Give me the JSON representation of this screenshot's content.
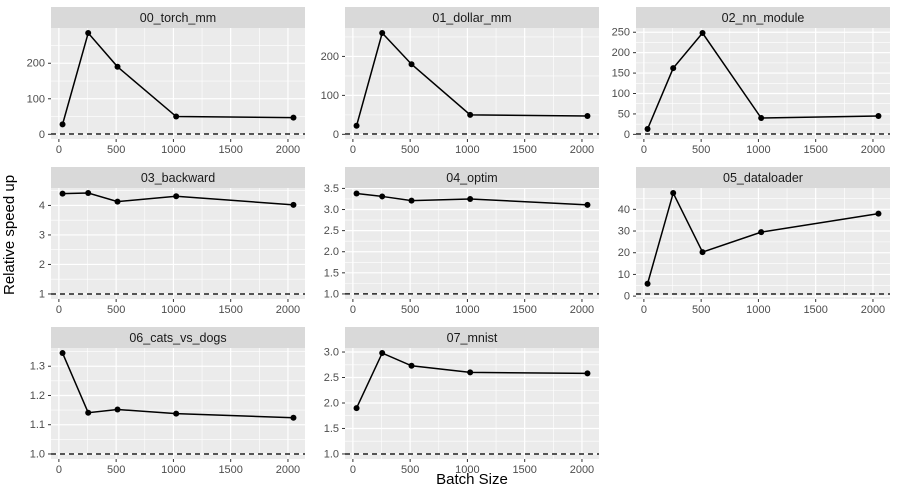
{
  "figure": {
    "colors": {
      "panel_bg": "#EBEBEB",
      "strip_bg": "#D9D9D9",
      "grid": "#FFFFFF",
      "line": "#000000",
      "point": "#000000",
      "baseline": "#222222",
      "tick_text": "#4D4D4D",
      "strip_text": "#1A1A1A",
      "tick_mark": "#333333"
    }
  },
  "chart_data": {
    "type": "line",
    "xlabel": "Batch Size",
    "ylabel": "Relative speed up",
    "legend": "none",
    "grid": true,
    "baseline": 1,
    "xlim": [
      -68.8,
      2148.8
    ],
    "xticks": [
      0,
      500,
      1000,
      1500,
      2000
    ],
    "xtick_labels": [
      "0",
      "500",
      "1000",
      "1500",
      "2000"
    ],
    "x": [
      32,
      256,
      512,
      1024,
      2048
    ],
    "facets": [
      {
        "title": "00_torch_mm",
        "values": [
          28,
          285,
          190,
          50,
          47
        ],
        "ylim": [
          -13.2,
          299.2
        ],
        "yticks": [
          0,
          100,
          200
        ],
        "ytick_labels": [
          "0",
          "100",
          "200"
        ]
      },
      {
        "title": "01_dollar_mm",
        "values": [
          22,
          260,
          180,
          50,
          47
        ],
        "ylim": [
          -11.95,
          272.95
        ],
        "yticks": [
          0,
          100,
          200
        ],
        "ytick_labels": [
          "0",
          "100",
          "200"
        ]
      },
      {
        "title": "02_nn_module",
        "values": [
          13,
          162,
          248,
          40,
          45
        ],
        "ylim": [
          -11.35,
          260.35
        ],
        "yticks": [
          0,
          50,
          100,
          150,
          200,
          250
        ],
        "ytick_labels": [
          "0",
          "50",
          "100",
          "150",
          "200",
          "250"
        ]
      },
      {
        "title": "03_backward",
        "values": [
          4.4,
          4.42,
          4.13,
          4.31,
          4.02
        ],
        "ylim": [
          0.829,
          4.591
        ],
        "yticks": [
          1,
          2,
          3,
          4
        ],
        "ytick_labels": [
          "1",
          "2",
          "3",
          "4"
        ]
      },
      {
        "title": "04_optim",
        "values": [
          3.38,
          3.31,
          3.21,
          3.25,
          3.11
        ],
        "ylim": [
          0.88,
          3.51
        ],
        "yticks": [
          1.0,
          1.5,
          2.0,
          2.5,
          3.0,
          3.5
        ],
        "ytick_labels": [
          "1.0",
          "1.5",
          "2.0",
          "2.5",
          "3.0",
          "3.5"
        ]
      },
      {
        "title": "05_dataloader",
        "values": [
          5.7,
          47.5,
          20.3,
          29.5,
          38
        ],
        "ylim": [
          -1.325,
          49.825
        ],
        "yticks": [
          0,
          10,
          20,
          30,
          40
        ],
        "ytick_labels": [
          "0",
          "10",
          "20",
          "30",
          "40"
        ]
      },
      {
        "title": "06_cats_vs_dogs",
        "values": [
          1.345,
          1.141,
          1.152,
          1.138,
          1.124
        ],
        "ylim": [
          0.9828,
          1.3623
        ],
        "yticks": [
          1.0,
          1.1,
          1.2,
          1.3
        ],
        "ytick_labels": [
          "1.0",
          "1.1",
          "1.2",
          "1.3"
        ]
      },
      {
        "title": "07_mnist",
        "values": [
          1.9,
          2.98,
          2.73,
          2.6,
          2.58
        ],
        "ylim": [
          0.901,
          3.079
        ],
        "yticks": [
          1.0,
          1.5,
          2.0,
          2.5,
          3.0
        ],
        "ytick_labels": [
          "1.0",
          "1.5",
          "2.0",
          "2.5",
          "3.0"
        ]
      }
    ]
  }
}
